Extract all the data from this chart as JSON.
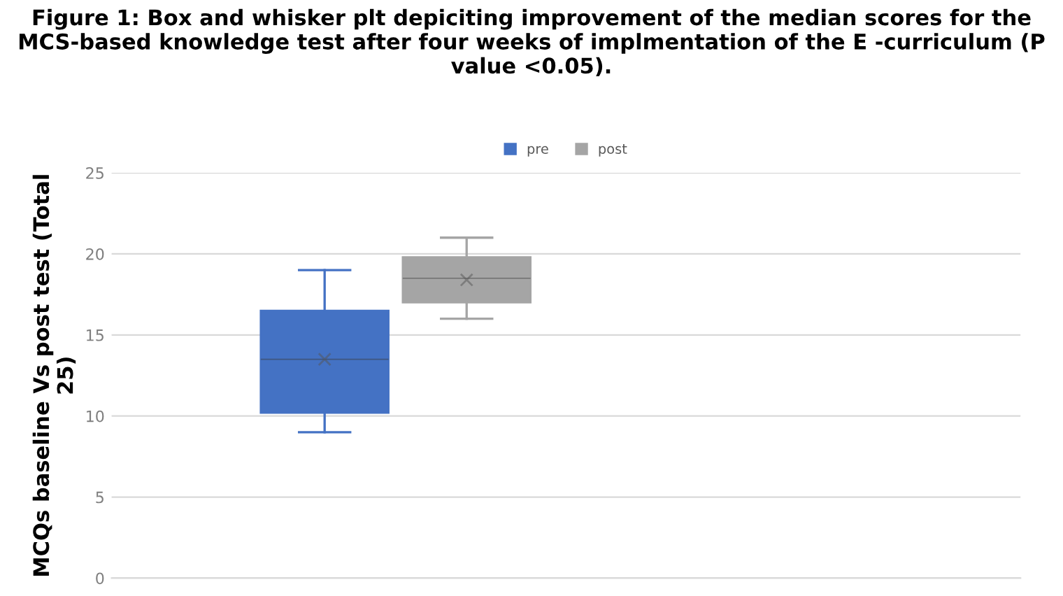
{
  "chart_data": {
    "type": "box",
    "title": "Figure 1: Box and whisker plt depiciting improvement of the median scores for the MCS-based knowledge test after four weeks of implmentation of the E -curriculum (P value <0.05).",
    "ylabel": "MCQs baseline Vs post test (Total 25)",
    "categories": [
      null
    ],
    "series": [
      {
        "name": "pre",
        "color": "#4472c4",
        "boxes": [
          {
            "low": 9,
            "q1": 10.2,
            "median": 13.5,
            "q3": 16.5,
            "high": 19,
            "mean": 13.5
          }
        ]
      },
      {
        "name": "post",
        "color": "#a5a5a5",
        "boxes": [
          {
            "low": 16,
            "q1": 17,
            "median": 18.5,
            "q3": 19.8,
            "high": 21,
            "mean": 18.4
          }
        ]
      }
    ],
    "ylim": [
      0,
      25
    ],
    "yticks": [
      0,
      5,
      10,
      15,
      20,
      25
    ],
    "grid": "y",
    "legend": "top"
  }
}
